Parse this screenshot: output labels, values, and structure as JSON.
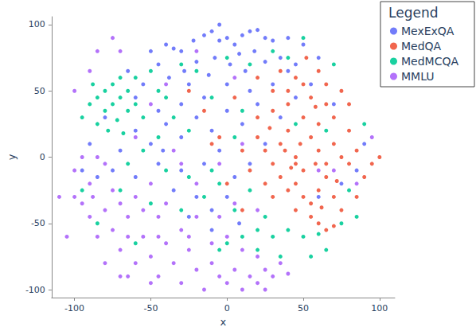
{
  "chart_data": {
    "type": "scatter",
    "x_label": "x",
    "y_label": "y",
    "legend_title": "Legend",
    "legend": "top-right",
    "grid": false,
    "marker": "circle",
    "xlim": [
      -115,
      110
    ],
    "ylim": [
      -106,
      106
    ],
    "xticks": [
      -100,
      -50,
      0,
      50,
      100
    ],
    "yticks": [
      -100,
      -50,
      0,
      50,
      100
    ],
    "series": [
      {
        "name": "MexExQA",
        "color": "#636efa",
        "values": [
          [
            -40,
            85
          ],
          [
            -35,
            82
          ],
          [
            -30,
            80
          ],
          [
            -22,
            88
          ],
          [
            -15,
            92
          ],
          [
            -10,
            95
          ],
          [
            -5,
            88
          ],
          [
            0,
            90
          ],
          [
            5,
            85
          ],
          [
            10,
            92
          ],
          [
            15,
            95
          ],
          [
            20,
            96
          ],
          [
            25,
            90
          ],
          [
            30,
            88
          ],
          [
            18,
            80
          ],
          [
            8,
            78
          ],
          [
            -8,
            75
          ],
          [
            -20,
            72
          ],
          [
            -28,
            65
          ],
          [
            -45,
            70
          ],
          [
            -50,
            80
          ],
          [
            -38,
            60
          ],
          [
            -25,
            55
          ],
          [
            -12,
            62
          ],
          [
            2,
            70
          ],
          [
            12,
            65
          ],
          [
            25,
            72
          ],
          [
            35,
            75
          ],
          [
            40,
            65
          ],
          [
            30,
            55
          ],
          [
            15,
            50
          ],
          [
            0,
            55
          ],
          [
            -15,
            45
          ],
          [
            -30,
            40
          ],
          [
            -45,
            35
          ],
          [
            -60,
            45
          ],
          [
            -55,
            55
          ],
          [
            -65,
            65
          ],
          [
            -60,
            20
          ],
          [
            -50,
            10
          ],
          [
            -40,
            25
          ],
          [
            -30,
            15
          ],
          [
            -20,
            30
          ],
          [
            -10,
            20
          ],
          [
            0,
            35
          ],
          [
            10,
            25
          ],
          [
            20,
            40
          ],
          [
            -5,
            5
          ],
          [
            -15,
            -5
          ],
          [
            -30,
            -10
          ],
          [
            -45,
            -5
          ],
          [
            -60,
            -15
          ],
          [
            -75,
            -10
          ],
          [
            -85,
            -15
          ],
          [
            -95,
            -10
          ],
          [
            -70,
            5
          ],
          [
            -35,
            -25
          ],
          [
            -20,
            -30
          ],
          [
            -10,
            -40
          ],
          [
            5,
            -15
          ],
          [
            15,
            -5
          ],
          [
            25,
            10
          ],
          [
            35,
            30
          ],
          [
            45,
            45
          ],
          [
            55,
            55
          ],
          [
            60,
            75
          ],
          [
            50,
            85
          ],
          [
            40,
            90
          ],
          [
            -10,
            -55
          ],
          [
            -25,
            -45
          ],
          [
            0,
            -30
          ],
          [
            60,
            -30
          ],
          [
            75,
            -20
          ],
          [
            85,
            -10
          ],
          [
            90,
            10
          ],
          [
            70,
            40
          ],
          [
            -80,
            30
          ],
          [
            -90,
            10
          ],
          [
            -5,
            100
          ],
          [
            45,
            70
          ],
          [
            -42,
            5
          ],
          [
            8,
            -50
          ]
        ]
      },
      {
        "name": "MedQA",
        "color": "#ef553b",
        "values": [
          [
            20,
            15
          ],
          [
            25,
            5
          ],
          [
            30,
            -5
          ],
          [
            35,
            10
          ],
          [
            40,
            20
          ],
          [
            45,
            0
          ],
          [
            50,
            -10
          ],
          [
            55,
            15
          ],
          [
            60,
            5
          ],
          [
            65,
            -5
          ],
          [
            70,
            10
          ],
          [
            75,
            0
          ],
          [
            80,
            -5
          ],
          [
            35,
            -15
          ],
          [
            40,
            -25
          ],
          [
            45,
            -20
          ],
          [
            50,
            -30
          ],
          [
            55,
            -35
          ],
          [
            60,
            -25
          ],
          [
            65,
            -15
          ],
          [
            70,
            -30
          ],
          [
            75,
            -40
          ],
          [
            60,
            -50
          ],
          [
            65,
            -55
          ],
          [
            70,
            -52
          ],
          [
            55,
            -45
          ],
          [
            45,
            -40
          ],
          [
            30,
            -30
          ],
          [
            25,
            -20
          ],
          [
            15,
            -10
          ],
          [
            10,
            5
          ],
          [
            20,
            30
          ],
          [
            30,
            35
          ],
          [
            40,
            40
          ],
          [
            50,
            30
          ],
          [
            60,
            25
          ],
          [
            70,
            30
          ],
          [
            80,
            20
          ],
          [
            85,
            5
          ],
          [
            90,
            -15
          ],
          [
            85,
            -30
          ],
          [
            55,
            45
          ],
          [
            65,
            55
          ],
          [
            50,
            55
          ],
          [
            45,
            60
          ],
          [
            60,
            65
          ],
          [
            40,
            50
          ],
          [
            30,
            50
          ],
          [
            75,
            50
          ],
          [
            80,
            40
          ],
          [
            20,
            60
          ],
          [
            35,
            65
          ],
          [
            52,
            75
          ],
          [
            -5,
            15
          ],
          [
            -15,
            35
          ],
          [
            -25,
            50
          ],
          [
            5,
            45
          ],
          [
            45,
            -5
          ],
          [
            38,
            5
          ],
          [
            58,
            -5
          ],
          [
            62,
            -38
          ],
          [
            48,
            10
          ],
          [
            42,
            -8
          ],
          [
            28,
            22
          ],
          [
            72,
            -18
          ],
          [
            95,
            -5
          ],
          [
            100,
            0
          ],
          [
            10,
            -40
          ],
          [
            0,
            -20
          ],
          [
            -10,
            10
          ],
          [
            65,
            40
          ],
          [
            58,
            38
          ]
        ]
      },
      {
        "name": "MedMCQA",
        "color": "#00cc96",
        "values": [
          [
            -90,
            40
          ],
          [
            -85,
            45
          ],
          [
            -80,
            50
          ],
          [
            -75,
            55
          ],
          [
            -70,
            60
          ],
          [
            -65,
            50
          ],
          [
            -80,
            35
          ],
          [
            -75,
            40
          ],
          [
            -70,
            45
          ],
          [
            -65,
            35
          ],
          [
            -60,
            40
          ],
          [
            -85,
            25
          ],
          [
            -78,
            20
          ],
          [
            -72,
            28
          ],
          [
            -68,
            18
          ],
          [
            -88,
            55
          ],
          [
            -95,
            30
          ],
          [
            -60,
            60
          ],
          [
            -55,
            30
          ],
          [
            -45,
            50
          ],
          [
            -50,
            65
          ],
          [
            -40,
            45
          ],
          [
            -35,
            30
          ],
          [
            -25,
            20
          ],
          [
            -45,
            15
          ],
          [
            -55,
            5
          ],
          [
            -65,
            -5
          ],
          [
            -40,
            -10
          ],
          [
            -25,
            -15
          ],
          [
            -15,
            -30
          ],
          [
            -5,
            -20
          ],
          [
            5,
            -40
          ],
          [
            10,
            -60
          ],
          [
            0,
            -65
          ],
          [
            20,
            -55
          ],
          [
            30,
            -60
          ],
          [
            40,
            -55
          ],
          [
            50,
            -60
          ],
          [
            60,
            -58
          ],
          [
            75,
            -50
          ],
          [
            85,
            -45
          ],
          [
            65,
            -70
          ],
          [
            35,
            -75
          ],
          [
            20,
            -70
          ],
          [
            -20,
            65
          ],
          [
            0,
            75
          ],
          [
            15,
            70
          ],
          [
            30,
            80
          ],
          [
            40,
            75
          ],
          [
            50,
            90
          ],
          [
            -10,
            45
          ],
          [
            5,
            15
          ],
          [
            15,
            -25
          ],
          [
            25,
            -45
          ],
          [
            45,
            25
          ],
          [
            65,
            20
          ],
          [
            80,
            -25
          ],
          [
            90,
            25
          ],
          [
            70,
            70
          ],
          [
            -30,
            -40
          ],
          [
            -50,
            -35
          ],
          [
            -70,
            -25
          ],
          [
            -85,
            -50
          ],
          [
            -60,
            -65
          ],
          [
            -95,
            -25
          ],
          [
            -10,
            -10
          ],
          [
            10,
            35
          ],
          [
            -30,
            70
          ],
          [
            55,
            -75
          ],
          [
            -5,
            -70
          ]
        ]
      },
      {
        "name": "MMLU",
        "color": "#ab63fa",
        "values": [
          [
            -95,
            -35
          ],
          [
            -90,
            -45
          ],
          [
            -85,
            -60
          ],
          [
            -80,
            -40
          ],
          [
            -75,
            -55
          ],
          [
            -70,
            -70
          ],
          [
            -65,
            -45
          ],
          [
            -60,
            -80
          ],
          [
            -55,
            -60
          ],
          [
            -50,
            -75
          ],
          [
            -45,
            -90
          ],
          [
            -40,
            -65
          ],
          [
            -35,
            -80
          ],
          [
            -30,
            -95
          ],
          [
            -25,
            -70
          ],
          [
            -20,
            -85
          ],
          [
            -15,
            -100
          ],
          [
            -10,
            -80
          ],
          [
            -5,
            -90
          ],
          [
            0,
            -95
          ],
          [
            5,
            -85
          ],
          [
            10,
            -100
          ],
          [
            15,
            -90
          ],
          [
            20,
            -95
          ],
          [
            25,
            -85
          ],
          [
            30,
            -90
          ],
          [
            35,
            -80
          ],
          [
            40,
            -88
          ],
          [
            20,
            -75
          ],
          [
            10,
            -70
          ],
          [
            -55,
            -40
          ],
          [
            -45,
            -45
          ],
          [
            -60,
            -30
          ],
          [
            -75,
            -25
          ],
          [
            -90,
            -20
          ],
          [
            -100,
            -30
          ],
          [
            -105,
            -60
          ],
          [
            -110,
            -30
          ],
          [
            -80,
            -80
          ],
          [
            -70,
            -90
          ],
          [
            -50,
            -95
          ],
          [
            -85,
            0
          ],
          [
            -95,
            0
          ],
          [
            -100,
            -10
          ],
          [
            -80,
            -5
          ],
          [
            -70,
            -35
          ],
          [
            -40,
            -35
          ],
          [
            -30,
            -55
          ],
          [
            -20,
            -45
          ],
          [
            -5,
            -45
          ],
          [
            5,
            -35
          ],
          [
            20,
            -40
          ],
          [
            -20,
            -20
          ],
          [
            -35,
            5
          ],
          [
            -50,
            -20
          ],
          [
            -60,
            15
          ],
          [
            -45,
            -60
          ],
          [
            -65,
            -90
          ],
          [
            0,
            -60
          ],
          [
            25,
            -100
          ],
          [
            -10,
            -65
          ],
          [
            -25,
            -60
          ],
          [
            -90,
            65
          ],
          [
            -100,
            50
          ],
          [
            -85,
            80
          ],
          [
            -70,
            80
          ],
          [
            -75,
            90
          ],
          [
            10,
            10
          ],
          [
            -5,
            -5
          ],
          [
            70,
            -10
          ],
          [
            85,
            -20
          ],
          [
            60,
            -10
          ],
          [
            95,
            15
          ],
          [
            -50,
            40
          ],
          [
            -30,
            -5
          ],
          [
            -40,
            55
          ],
          [
            5,
            60
          ],
          [
            -20,
            80
          ],
          [
            -65,
            -60
          ],
          [
            -88,
            -30
          ]
        ]
      }
    ]
  }
}
